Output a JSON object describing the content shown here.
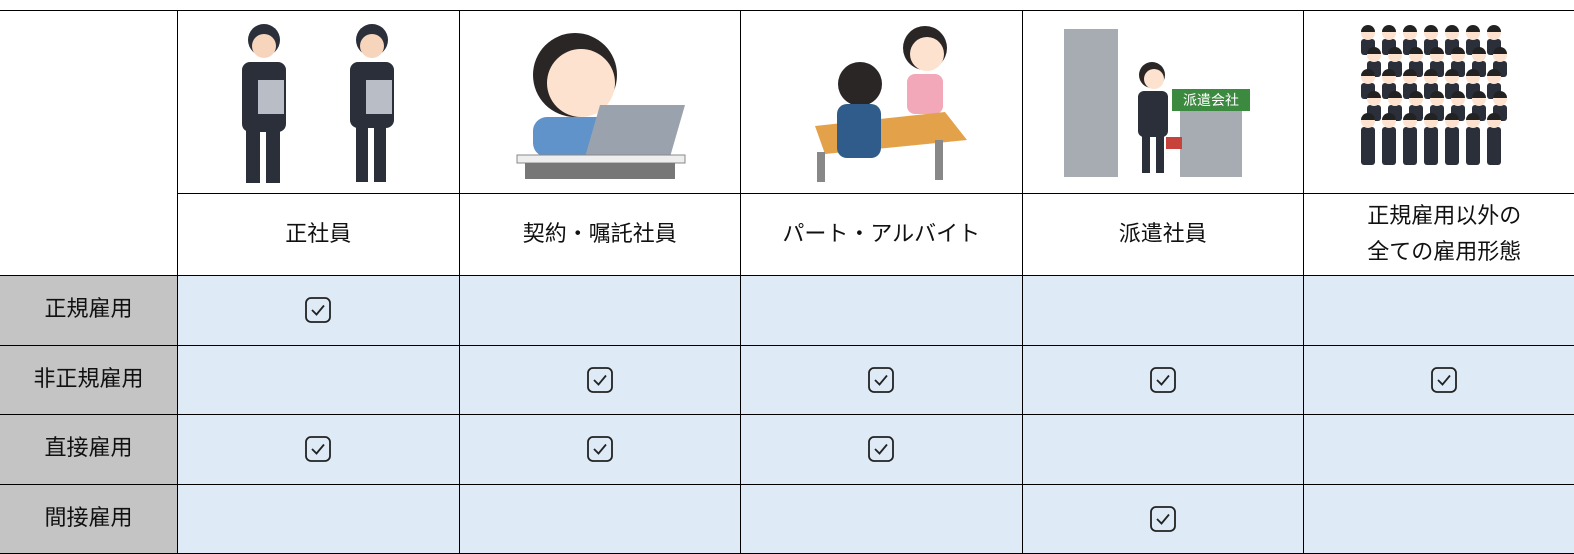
{
  "table": {
    "columns": [
      [
        "正社員"
      ],
      [
        "契約・嘱託社員"
      ],
      [
        "パート・アルバイト"
      ],
      [
        "派遣社員"
      ],
      [
        "正規雇用以外の",
        "全ての雇用形態"
      ]
    ],
    "rows": [
      {
        "label": "正規雇用",
        "checks": [
          true,
          false,
          false,
          false,
          false
        ]
      },
      {
        "label": "非正規雇用",
        "checks": [
          false,
          true,
          true,
          true,
          true
        ]
      },
      {
        "label": "直接雇用",
        "checks": [
          true,
          true,
          true,
          false,
          false
        ]
      },
      {
        "label": "間接雇用",
        "checks": [
          false,
          false,
          false,
          true,
          false
        ]
      }
    ],
    "sign": "派遣会社"
  }
}
